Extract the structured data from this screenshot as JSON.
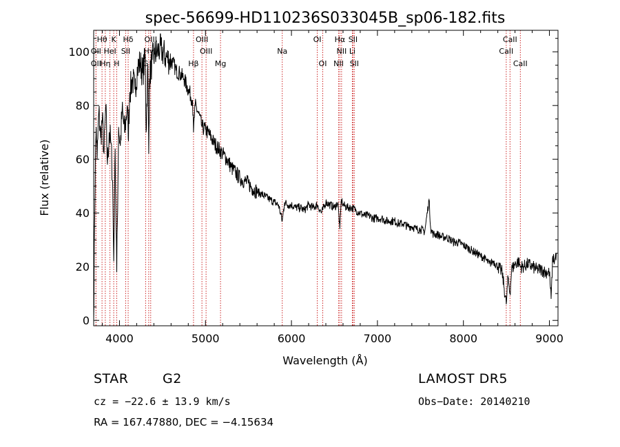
{
  "chart_data": {
    "type": "line",
    "title": "spec-56699-HD110236S033045B_sp06-182.fits",
    "xlabel": "Wavelength (Å)",
    "ylabel": "Flux (relative)",
    "xlim": [
      3700,
      9100
    ],
    "ylim": [
      -2,
      108
    ],
    "x_ticks": [
      4000,
      5000,
      6000,
      7000,
      8000,
      9000
    ],
    "y_ticks": [
      0,
      20,
      40,
      60,
      80,
      100
    ],
    "grid": false,
    "series": [
      {
        "x": [
          3700,
          3710,
          3720,
          3730,
          3740,
          3760,
          3780,
          3800,
          3820,
          3840,
          3860,
          3880,
          3900,
          3920,
          3933,
          3950,
          3968,
          3990,
          4010,
          4030,
          4060,
          4090,
          4101,
          4120,
          4150,
          4180,
          4210,
          4240,
          4270,
          4300,
          4310,
          4330,
          4340,
          4350,
          4380,
          4410,
          4440,
          4470,
          4500,
          4540,
          4580,
          4620,
          4660,
          4700,
          4750,
          4800,
          4850,
          4861,
          4880,
          4920,
          4960,
          5000,
          5050,
          5100,
          5150,
          5200,
          5250,
          5300,
          5350,
          5400,
          5450,
          5500,
          5550,
          5600,
          5650,
          5700,
          5750,
          5800,
          5850,
          5893,
          5920,
          5960,
          6000,
          6050,
          6100,
          6150,
          6200,
          6250,
          6300,
          6350,
          6400,
          6450,
          6500,
          6540,
          6563,
          6580,
          6600,
          6650,
          6700,
          6750,
          6800,
          6850,
          6900,
          6950,
          7000,
          7050,
          7100,
          7150,
          7200,
          7250,
          7300,
          7350,
          7400,
          7450,
          7500,
          7550,
          7600,
          7620,
          7650,
          7700,
          7750,
          7800,
          7850,
          7900,
          7950,
          8000,
          8050,
          8100,
          8150,
          8200,
          8250,
          8300,
          8350,
          8400,
          8450,
          8498,
          8520,
          8542,
          8560,
          8600,
          8640,
          8662,
          8700,
          8750,
          8800,
          8850,
          8900,
          8950,
          9000,
          9020,
          9040,
          9060,
          9080
        ],
        "y": [
          0,
          35,
          60,
          72,
          60,
          78,
          68,
          75,
          62,
          80,
          58,
          70,
          66,
          52,
          22,
          64,
          18,
          72,
          65,
          78,
          70,
          80,
          68,
          85,
          90,
          86,
          94,
          96,
          92,
          98,
          70,
          95,
          62,
          90,
          97,
          99,
          100,
          101,
          100,
          98,
          97,
          96,
          93,
          92,
          90,
          86,
          82,
          70,
          80,
          77,
          72,
          71,
          69,
          66,
          64,
          62,
          60,
          57,
          55,
          53,
          52,
          51,
          49,
          48,
          47,
          46,
          45,
          44,
          43,
          37,
          44,
          43,
          43,
          42,
          42,
          41,
          43,
          42,
          43,
          40,
          44,
          43,
          42,
          44,
          34,
          45,
          43,
          42,
          42,
          41,
          40,
          39,
          39,
          38,
          38,
          38,
          37,
          37,
          37,
          36,
          36,
          35,
          35,
          34,
          34,
          33,
          45,
          34,
          32,
          32,
          31,
          31,
          30,
          29,
          29,
          28,
          27,
          26,
          25,
          24,
          23,
          21,
          22,
          20,
          18,
          6,
          16,
          10,
          19,
          21,
          22,
          20,
          20,
          21,
          20,
          19,
          19,
          18,
          18,
          8,
          24,
          22,
          25
        ]
      }
    ],
    "line_labels": [
      {
        "name": "Hθ",
        "wl": 3797,
        "row": 0
      },
      {
        "name": "K",
        "wl": 3933,
        "row": 0
      },
      {
        "name": "Hδ",
        "wl": 4101,
        "row": 0
      },
      {
        "name": "OIII",
        "wl": 4363,
        "row": 0
      },
      {
        "name": "OIII",
        "wl": 4959,
        "row": 0
      },
      {
        "name": "OI",
        "wl": 6300,
        "row": 0
      },
      {
        "name": "Hα",
        "wl": 6563,
        "row": 0
      },
      {
        "name": "SII",
        "wl": 6716,
        "row": 0
      },
      {
        "name": "CaII",
        "wl": 8542,
        "row": 0
      },
      {
        "name": "OII",
        "wl": 3727,
        "row": 1
      },
      {
        "name": "HeI",
        "wl": 3889,
        "row": 1
      },
      {
        "name": "SII",
        "wl": 4072,
        "row": 1
      },
      {
        "name": "Hγ",
        "wl": 4340,
        "row": 1
      },
      {
        "name": "OIII",
        "wl": 5007,
        "row": 1
      },
      {
        "name": "Na",
        "wl": 5893,
        "row": 1
      },
      {
        "name": "NII",
        "wl": 6583,
        "row": 1
      },
      {
        "name": "Li",
        "wl": 6708,
        "row": 1
      },
      {
        "name": "CaII",
        "wl": 8498,
        "row": 1
      },
      {
        "name": "OII",
        "wl": 3727,
        "row": 2
      },
      {
        "name": "Hη",
        "wl": 3835,
        "row": 2
      },
      {
        "name": "H",
        "wl": 3968,
        "row": 2
      },
      {
        "name": "G",
        "wl": 4304,
        "row": 2
      },
      {
        "name": "Hβ",
        "wl": 4861,
        "row": 2
      },
      {
        "name": "Mg",
        "wl": 5175,
        "row": 2
      },
      {
        "name": "OI",
        "wl": 6364,
        "row": 2
      },
      {
        "name": "NII",
        "wl": 6548,
        "row": 2
      },
      {
        "name": "SII",
        "wl": 6731,
        "row": 2
      },
      {
        "name": "CaII",
        "wl": 8662,
        "row": 2
      }
    ],
    "line_color": "#cc2222"
  },
  "info": {
    "object_type": "STAR",
    "subclass": "G2",
    "survey": "LAMOST DR5",
    "cz": "cz = −22.6 ± 13.9 km/s",
    "obs_date": "Obs−Date: 20140210",
    "coords": "RA = 167.47880, DEC =  −4.15634"
  }
}
